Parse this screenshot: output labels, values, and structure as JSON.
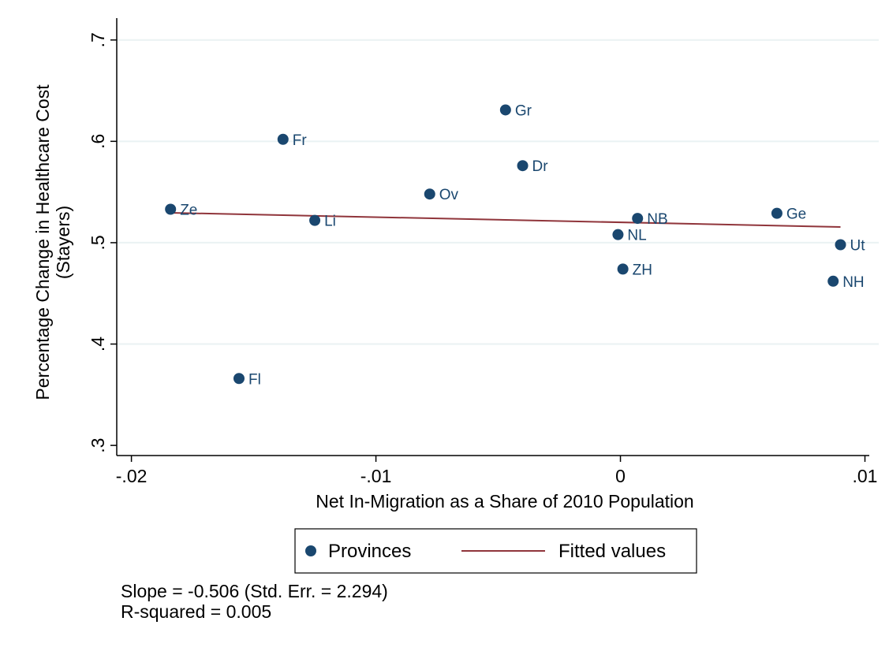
{
  "chart_data": {
    "type": "scatter",
    "xlabel": "Net In-Migration as a Share of 2010 Population",
    "ylabel_lines": [
      "Percentage Change in Healthcare Cost",
      "(Stayers)"
    ],
    "xlim": [
      -0.0206,
      0.0105
    ],
    "ylim": [
      0.29,
      0.72
    ],
    "x_ticks": [
      {
        "value": -0.02,
        "label": "-.02"
      },
      {
        "value": -0.01,
        "label": "-.01"
      },
      {
        "value": 0,
        "label": "0"
      },
      {
        "value": 0.01,
        "label": ".01"
      }
    ],
    "y_ticks": [
      {
        "value": 0.3,
        "label": ".3"
      },
      {
        "value": 0.4,
        "label": ".4"
      },
      {
        "value": 0.5,
        "label": ".5"
      },
      {
        "value": 0.6,
        "label": ".6"
      },
      {
        "value": 0.7,
        "label": ".7"
      }
    ],
    "grid": "horizontal",
    "series": [
      {
        "name": "Provinces",
        "color": "#1a476f",
        "points": [
          {
            "label": "Ze",
            "x": -0.0184,
            "y": 0.533
          },
          {
            "label": "Fl",
            "x": -0.0156,
            "y": 0.366
          },
          {
            "label": "Fr",
            "x": -0.0138,
            "y": 0.602
          },
          {
            "label": "Li",
            "x": -0.0125,
            "y": 0.522
          },
          {
            "label": "Ov",
            "x": -0.0078,
            "y": 0.548
          },
          {
            "label": "Gr",
            "x": -0.0047,
            "y": 0.631
          },
          {
            "label": "Dr",
            "x": -0.004,
            "y": 0.576
          },
          {
            "label": "NL",
            "x": -0.0001,
            "y": 0.508
          },
          {
            "label": "ZH",
            "x": 0.0001,
            "y": 0.474
          },
          {
            "label": "NB",
            "x": 0.0007,
            "y": 0.524
          },
          {
            "label": "Ge",
            "x": 0.0064,
            "y": 0.529
          },
          {
            "label": "NH",
            "x": 0.0087,
            "y": 0.462
          },
          {
            "label": "Ut",
            "x": 0.009,
            "y": 0.498
          }
        ]
      },
      {
        "name": "Fitted values",
        "color": "#90353b",
        "type": "line",
        "x": [
          -0.0184,
          0.009
        ],
        "y": [
          0.5295,
          0.5155
        ]
      }
    ],
    "legend": {
      "position": "bottom",
      "items": [
        {
          "label": "Provinces",
          "marker": "dot",
          "color": "#1a476f"
        },
        {
          "label": "Fitted values",
          "marker": "line",
          "color": "#90353b"
        }
      ]
    },
    "notes": [
      "Slope = -0.506 (Std. Err. = 2.294)",
      "R-squared = 0.005"
    ],
    "grid_color": "#eaf2f3",
    "axis_color": "#000000"
  }
}
